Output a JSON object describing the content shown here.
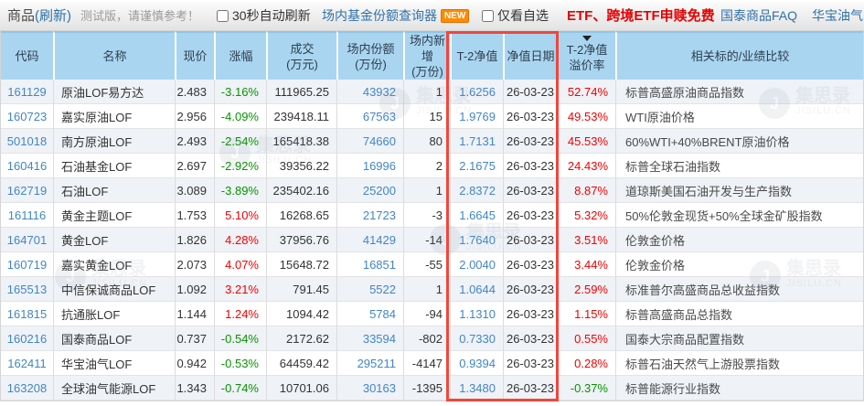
{
  "topbar": {
    "title": "商品",
    "refresh_label": "(刷新)",
    "beta_note": "测试版，请谨慎参考！",
    "auto_refresh_label": "30秒自动刷新",
    "share_query_link": "场内基金份额查询器",
    "new_badge": "NEW",
    "only_watchlist_label": "仅看自选",
    "etf_notice": "ETF、跨境ETF申赎免费",
    "guotai_faq": "国泰商品FAQ",
    "huabao_faq": "华宝油气FAQ"
  },
  "table": {
    "headers": [
      {
        "line1": "代码",
        "line2": ""
      },
      {
        "line1": "名称",
        "line2": ""
      },
      {
        "line1": "现价",
        "line2": ""
      },
      {
        "line1": "涨幅",
        "line2": ""
      },
      {
        "line1": "成交",
        "line2": "(万元)"
      },
      {
        "line1": "场内份额",
        "line2": "(万份)"
      },
      {
        "line1": "场内新增",
        "line2": "(万份)"
      },
      {
        "line1": "T-2净值",
        "line2": ""
      },
      {
        "line1": "净值日期",
        "line2": ""
      },
      {
        "line1": "T-2净值",
        "line2": "溢价率"
      },
      {
        "line1": "相关标的/业绩比较",
        "line2": ""
      }
    ],
    "sort_column": "T-2净值溢价率",
    "sort_direction": "desc",
    "rows": [
      {
        "code": "161129",
        "name": "原油LOF易方达",
        "price": "2.483",
        "change": "-3.16%",
        "volume": "111965.25",
        "shares": "43932",
        "new_shares": "1",
        "nav": "1.6256",
        "nav_date": "26-03-23",
        "premium": "52.74%",
        "benchmark": "标普高盛原油商品指数"
      },
      {
        "code": "160723",
        "name": "嘉实原油LOF",
        "price": "2.956",
        "change": "-4.09%",
        "volume": "239418.11",
        "shares": "67563",
        "new_shares": "15",
        "nav": "1.9769",
        "nav_date": "26-03-23",
        "premium": "49.53%",
        "benchmark": "WTI原油价格"
      },
      {
        "code": "501018",
        "name": "南方原油LOF",
        "price": "2.493",
        "change": "-2.54%",
        "volume": "165418.38",
        "shares": "74660",
        "new_shares": "80",
        "nav": "1.7131",
        "nav_date": "26-03-23",
        "premium": "45.53%",
        "benchmark": "60%WTI+40%BRENT原油价格"
      },
      {
        "code": "160416",
        "name": "石油基金LOF",
        "price": "2.697",
        "change": "-2.92%",
        "volume": "39356.22",
        "shares": "16996",
        "new_shares": "2",
        "nav": "2.1675",
        "nav_date": "26-03-23",
        "premium": "24.43%",
        "benchmark": "标普全球石油指数"
      },
      {
        "code": "162719",
        "name": "石油LOF",
        "price": "3.089",
        "change": "-3.89%",
        "volume": "235402.16",
        "shares": "25200",
        "new_shares": "1",
        "nav": "2.8372",
        "nav_date": "26-03-23",
        "premium": "8.87%",
        "benchmark": "道琼斯美国石油开发与生产指数"
      },
      {
        "code": "161116",
        "name": "黄金主题LOF",
        "price": "1.753",
        "change": "5.10%",
        "volume": "16268.65",
        "shares": "21723",
        "new_shares": "-3",
        "nav": "1.6645",
        "nav_date": "26-03-23",
        "premium": "5.32%",
        "benchmark": "50%伦敦金现货+50%全球金矿股指数"
      },
      {
        "code": "164701",
        "name": "黄金LOF",
        "price": "1.826",
        "change": "4.28%",
        "volume": "37956.76",
        "shares": "41429",
        "new_shares": "-14",
        "nav": "1.7640",
        "nav_date": "26-03-23",
        "premium": "3.51%",
        "benchmark": "伦敦金价格"
      },
      {
        "code": "160719",
        "name": "嘉实黄金LOF",
        "price": "2.073",
        "change": "4.07%",
        "volume": "15648.72",
        "shares": "16851",
        "new_shares": "-55",
        "nav": "2.0040",
        "nav_date": "26-03-23",
        "premium": "3.44%",
        "benchmark": "伦敦金价格"
      },
      {
        "code": "165513",
        "name": "中信保诚商品LOF",
        "price": "1.092",
        "change": "3.21%",
        "volume": "791.45",
        "shares": "5522",
        "new_shares": "1",
        "nav": "1.0644",
        "nav_date": "26-03-23",
        "premium": "2.59%",
        "benchmark": "标准普尔高盛商品总收益指数"
      },
      {
        "code": "161815",
        "name": "抗通胀LOF",
        "price": "1.144",
        "change": "1.24%",
        "volume": "1094.42",
        "shares": "5784",
        "new_shares": "-94",
        "nav": "1.1310",
        "nav_date": "26-03-23",
        "premium": "1.15%",
        "benchmark": "标普高盛商品总指数"
      },
      {
        "code": "160216",
        "name": "国泰商品LOF",
        "price": "0.737",
        "change": "-0.54%",
        "volume": "2172.62",
        "shares": "33594",
        "new_shares": "-802",
        "nav": "0.7330",
        "nav_date": "26-03-23",
        "premium": "0.55%",
        "benchmark": "国泰大宗商品配置指数"
      },
      {
        "code": "162411",
        "name": "华宝油气LOF",
        "price": "0.942",
        "change": "-0.53%",
        "volume": "64459.42",
        "shares": "295211",
        "new_shares": "-4147",
        "nav": "0.9394",
        "nav_date": "26-03-23",
        "premium": "0.28%",
        "benchmark": "标普石油天然气上游股票指数"
      },
      {
        "code": "163208",
        "name": "全球油气能源LOF",
        "price": "1.343",
        "change": "-0.74%",
        "volume": "10701.06",
        "shares": "30163",
        "new_shares": "-1395",
        "nav": "1.3480",
        "nav_date": "26-03-23",
        "premium": "-0.37%",
        "benchmark": "标普能源行业指数"
      }
    ]
  },
  "colors": {
    "positive": "#f20000",
    "negative": "#089400",
    "link_blue": "#4186c7",
    "header_bg": "#a9d5f0",
    "highlight_border": "#f4453a",
    "etf_notice_red": "#e60000"
  },
  "watermark": {
    "name_cn": "集思录",
    "name_en": "JISILU.CN",
    "initial": "J"
  }
}
